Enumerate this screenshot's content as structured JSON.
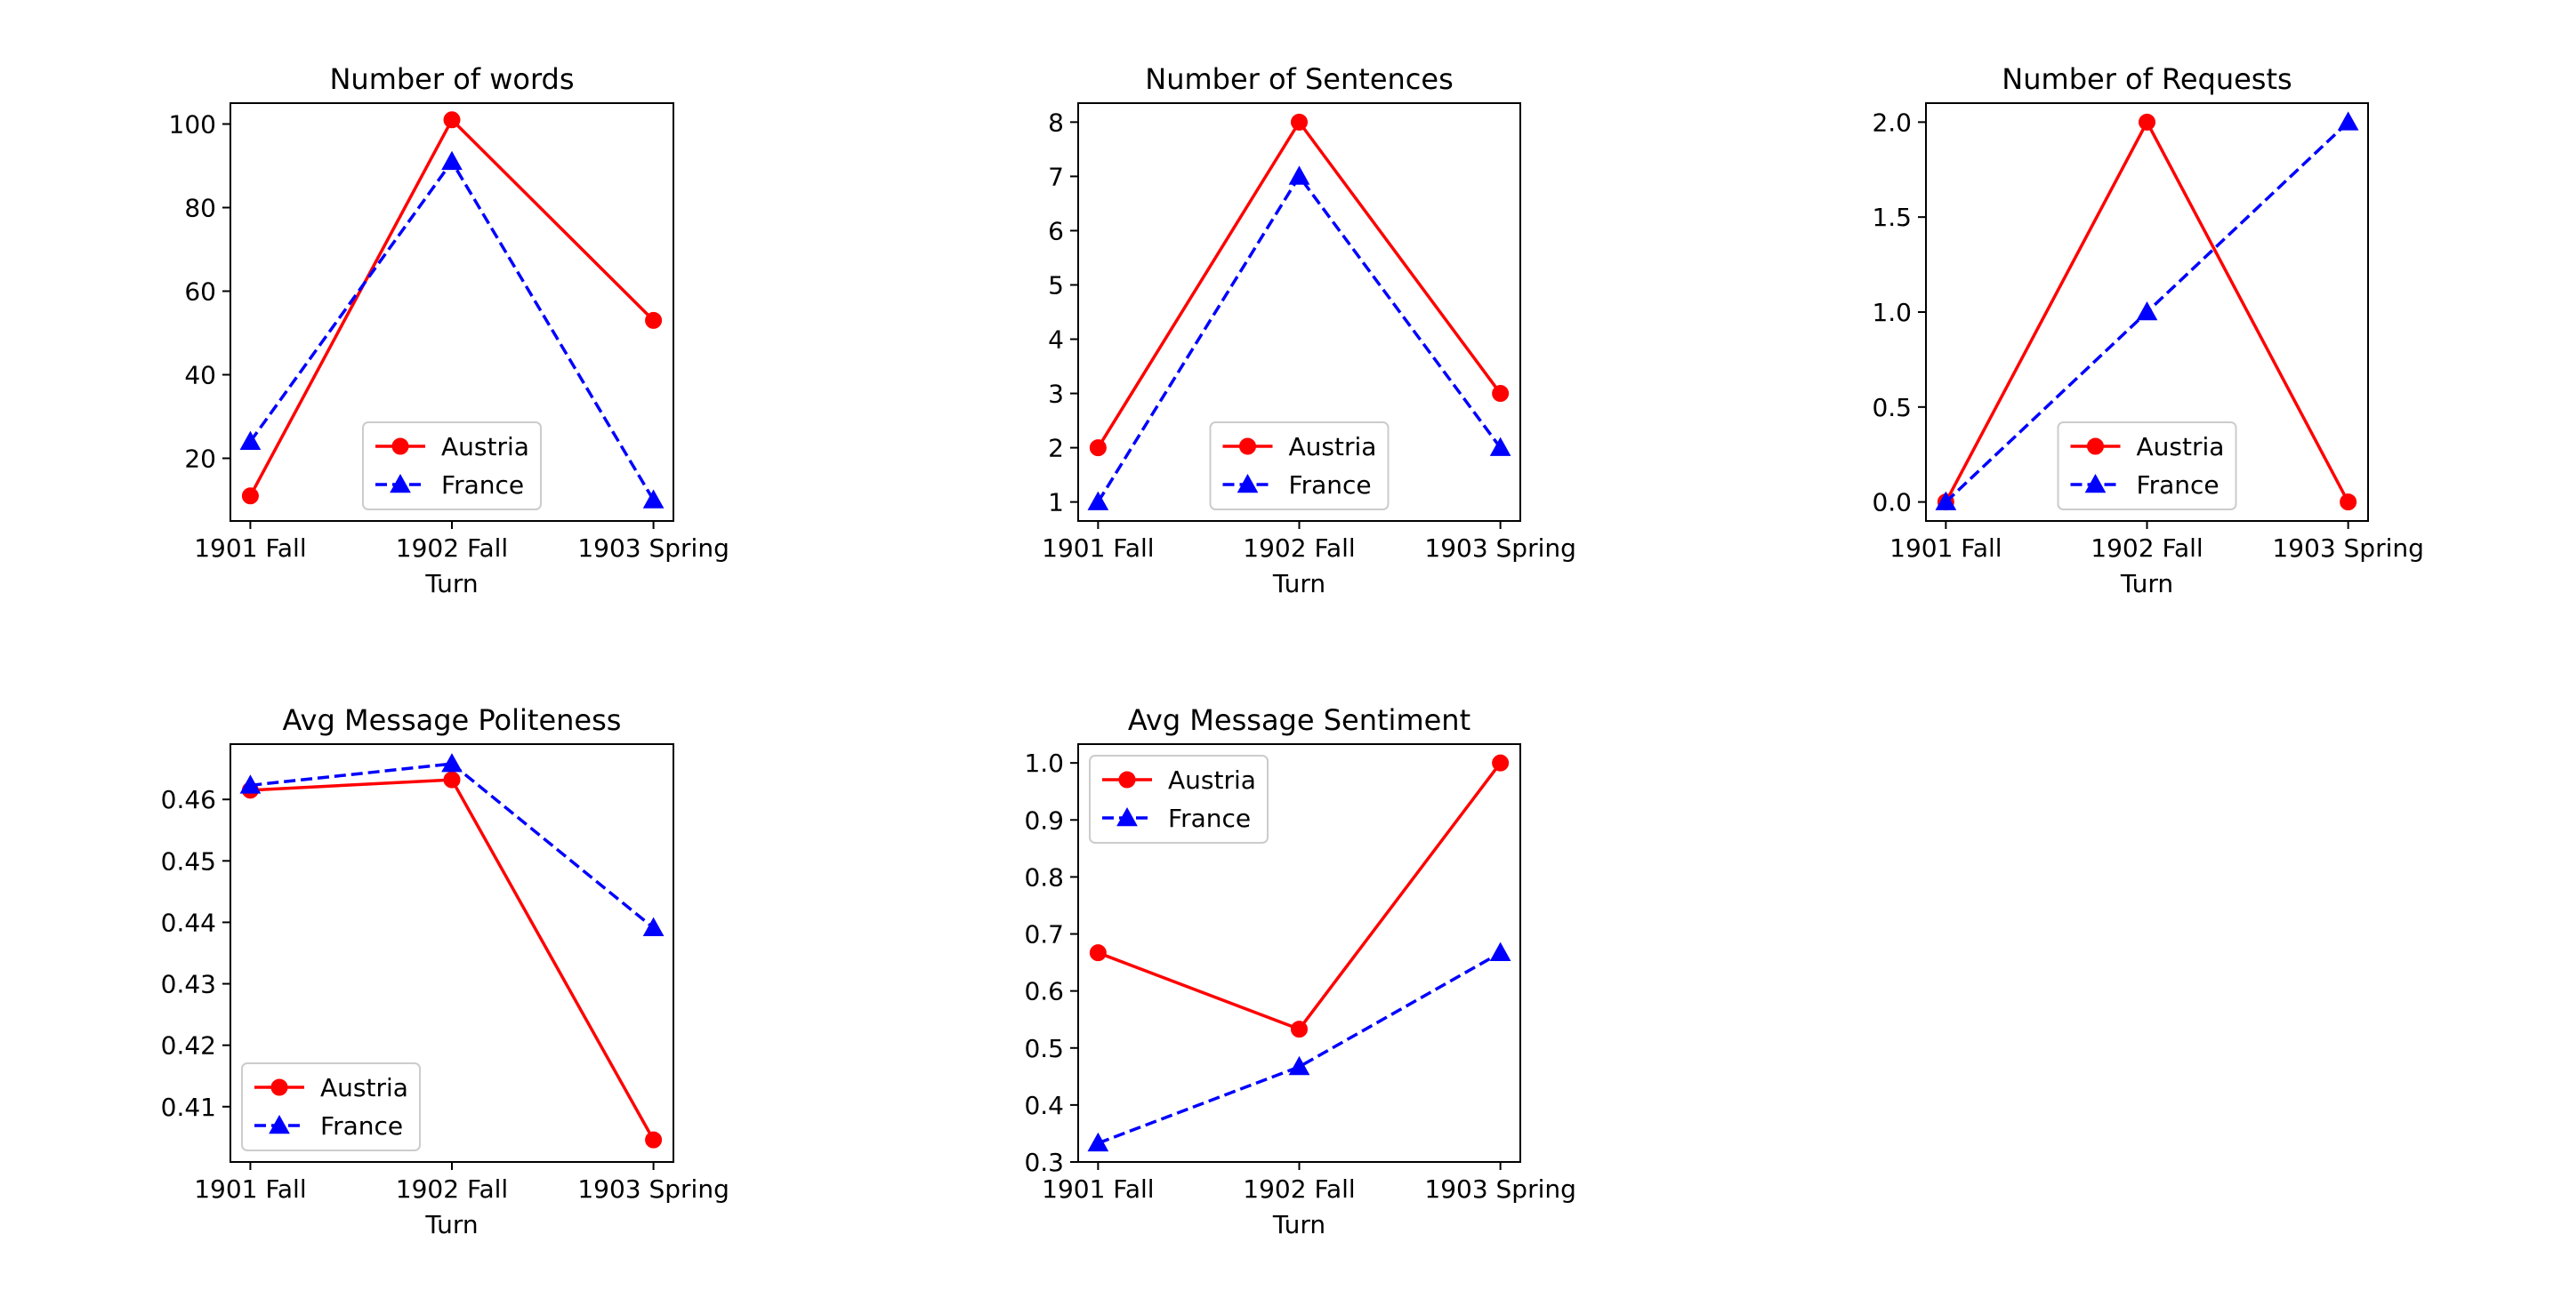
{
  "chart_data": [
    {
      "type": "line",
      "title": "Number of words",
      "xlabel": "Turn",
      "categories": [
        "1901 Fall",
        "1902 Fall",
        "1903 Spring"
      ],
      "ylim": [
        5,
        105
      ],
      "yticks": [
        20,
        40,
        60,
        80,
        100
      ],
      "legend": "lower-center",
      "grid": false,
      "series": [
        {
          "name": "Austria",
          "values": [
            11,
            101,
            53
          ],
          "color": "#ff0000",
          "style": "solid",
          "marker": "circle"
        },
        {
          "name": "France",
          "values": [
            24,
            91,
            10
          ],
          "color": "#0000ff",
          "style": "dashed",
          "marker": "triangle"
        }
      ]
    },
    {
      "type": "line",
      "title": "Number of Sentences",
      "xlabel": "Turn",
      "categories": [
        "1901 Fall",
        "1902 Fall",
        "1903 Spring"
      ],
      "ylim": [
        0.65,
        8.35
      ],
      "yticks": [
        1,
        2,
        3,
        4,
        5,
        6,
        7,
        8
      ],
      "legend": "lower-center",
      "grid": false,
      "series": [
        {
          "name": "Austria",
          "values": [
            2,
            8,
            3
          ],
          "color": "#ff0000",
          "style": "solid",
          "marker": "circle"
        },
        {
          "name": "France",
          "values": [
            1,
            7,
            2
          ],
          "color": "#0000ff",
          "style": "dashed",
          "marker": "triangle"
        }
      ]
    },
    {
      "type": "line",
      "title": "Number of Requests",
      "xlabel": "Turn",
      "categories": [
        "1901 Fall",
        "1902 Fall",
        "1903 Spring"
      ],
      "ylim": [
        -0.1,
        2.1
      ],
      "yticks": [
        0.0,
        0.5,
        1.0,
        1.5,
        2.0
      ],
      "ytick_labels": [
        "0.0",
        "0.5",
        "1.0",
        "1.5",
        "2.0"
      ],
      "legend": "lower-center",
      "grid": false,
      "series": [
        {
          "name": "Austria",
          "values": [
            0,
            2,
            0
          ],
          "color": "#ff0000",
          "style": "solid",
          "marker": "circle"
        },
        {
          "name": "France",
          "values": [
            0,
            1,
            2
          ],
          "color": "#0000ff",
          "style": "dashed",
          "marker": "triangle"
        }
      ]
    },
    {
      "type": "line",
      "title": "Avg Message Politeness",
      "xlabel": "Turn",
      "categories": [
        "1901 Fall",
        "1902 Fall",
        "1903 Spring"
      ],
      "ylim": [
        0.401,
        0.469
      ],
      "yticks": [
        0.41,
        0.42,
        0.43,
        0.44,
        0.45,
        0.46
      ],
      "ytick_labels": [
        "0.41",
        "0.42",
        "0.43",
        "0.44",
        "0.45",
        "0.46"
      ],
      "legend": "lower-left",
      "grid": false,
      "series": [
        {
          "name": "Austria",
          "values": [
            0.4615,
            0.4632,
            0.4046
          ],
          "color": "#ff0000",
          "style": "solid",
          "marker": "circle"
        },
        {
          "name": "France",
          "values": [
            0.4623,
            0.4658,
            0.4391
          ],
          "color": "#0000ff",
          "style": "dashed",
          "marker": "triangle"
        }
      ]
    },
    {
      "type": "line",
      "title": "Avg Message Sentiment",
      "xlabel": "Turn",
      "categories": [
        "1901 Fall",
        "1902 Fall",
        "1903 Spring"
      ],
      "ylim": [
        0.3,
        1.033
      ],
      "yticks": [
        0.3,
        0.4,
        0.5,
        0.6,
        0.7,
        0.8,
        0.9,
        1.0
      ],
      "ytick_labels": [
        "0.3",
        "0.4",
        "0.5",
        "0.6",
        "0.7",
        "0.8",
        "0.9",
        "1.0"
      ],
      "legend": "upper-left",
      "grid": false,
      "series": [
        {
          "name": "Austria",
          "values": [
            0.667,
            0.533,
            1.0
          ],
          "color": "#ff0000",
          "style": "solid",
          "marker": "circle"
        },
        {
          "name": "France",
          "values": [
            0.333,
            0.467,
            0.667
          ],
          "color": "#0000ff",
          "style": "dashed",
          "marker": "triangle"
        }
      ]
    }
  ]
}
